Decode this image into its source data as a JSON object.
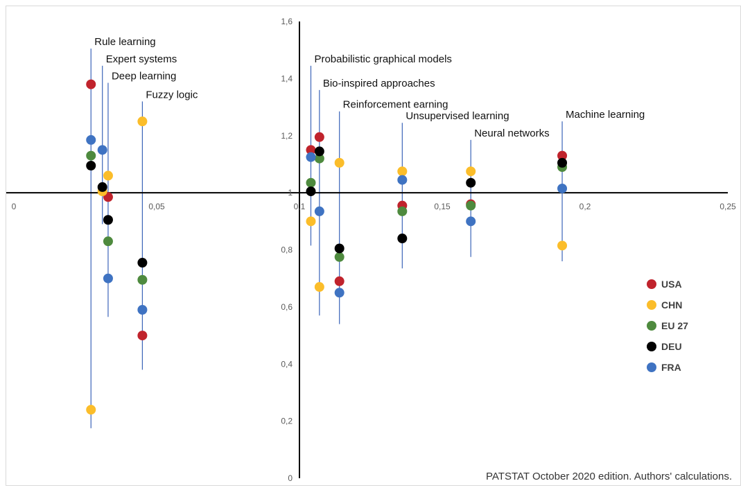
{
  "chart_data": {
    "type": "scatter",
    "xlim": [
      0,
      0.25
    ],
    "ylim": [
      0,
      1.6
    ],
    "x_ticks": [
      "0",
      "0,05",
      "0,1",
      "0,15",
      "0,2",
      "0,25"
    ],
    "y_ticks": [
      "0",
      "0,2",
      "0,4",
      "0,6",
      "0,8",
      "1",
      "1,2",
      "1,4",
      "1,6"
    ],
    "grid": false,
    "axis_crossing": {
      "x": 0.1,
      "y": 1
    },
    "legend_position": "right",
    "colors": {
      "USA": "#c0232c",
      "CHN": "#fbbd2a",
      "EU 27": "#4e8a3e",
      "DEU": "#000000",
      "FRA": "#3f73c2",
      "line": "#3b64b8",
      "axis": "#000000"
    },
    "groups": [
      {
        "label": "Rule learning",
        "x": 0.027,
        "line_range": [
          0.175,
          1.505
        ]
      },
      {
        "label": "Expert systems",
        "x": 0.031,
        "line_range": [
          0.89,
          1.445
        ]
      },
      {
        "label": "Deep learning",
        "x": 0.033,
        "line_range": [
          0.565,
          1.385
        ]
      },
      {
        "label": "Fuzzy logic",
        "x": 0.045,
        "line_range": [
          0.38,
          1.32
        ]
      },
      {
        "label": "Probabilistic graphical models",
        "x": 0.104,
        "line_range": [
          0.815,
          1.445
        ]
      },
      {
        "label": "Bio-inspired approaches",
        "x": 0.107,
        "line_range": [
          0.57,
          1.36
        ]
      },
      {
        "label": "Reinforcement earning",
        "x": 0.114,
        "line_range": [
          0.54,
          1.285
        ]
      },
      {
        "label": "Unsupervised learning",
        "x": 0.136,
        "line_range": [
          0.735,
          1.245
        ]
      },
      {
        "label": "Neural networks",
        "x": 0.16,
        "line_range": [
          0.775,
          1.185
        ]
      },
      {
        "label": "Machine learning",
        "x": 0.192,
        "line_range": [
          0.76,
          1.25
        ]
      }
    ],
    "series": [
      {
        "name": "USA",
        "points": [
          {
            "x": 0.027,
            "y": 1.38
          },
          {
            "x": 0.033,
            "y": 0.985
          },
          {
            "x": 0.045,
            "y": 0.5
          },
          {
            "x": 0.104,
            "y": 1.15
          },
          {
            "x": 0.107,
            "y": 1.195
          },
          {
            "x": 0.114,
            "y": 0.69
          },
          {
            "x": 0.136,
            "y": 0.955
          },
          {
            "x": 0.16,
            "y": 0.96
          },
          {
            "x": 0.192,
            "y": 1.13
          }
        ]
      },
      {
        "name": "CHN",
        "points": [
          {
            "x": 0.027,
            "y": 0.24
          },
          {
            "x": 0.031,
            "y": 1.005
          },
          {
            "x": 0.033,
            "y": 1.06
          },
          {
            "x": 0.045,
            "y": 1.25
          },
          {
            "x": 0.104,
            "y": 0.9
          },
          {
            "x": 0.107,
            "y": 0.67
          },
          {
            "x": 0.114,
            "y": 1.105
          },
          {
            "x": 0.136,
            "y": 1.075
          },
          {
            "x": 0.16,
            "y": 1.075
          },
          {
            "x": 0.192,
            "y": 0.815
          }
        ]
      },
      {
        "name": "EU 27",
        "points": [
          {
            "x": 0.027,
            "y": 1.13
          },
          {
            "x": 0.033,
            "y": 0.83
          },
          {
            "x": 0.045,
            "y": 0.695
          },
          {
            "x": 0.104,
            "y": 1.035
          },
          {
            "x": 0.107,
            "y": 1.12
          },
          {
            "x": 0.114,
            "y": 0.775
          },
          {
            "x": 0.136,
            "y": 0.935
          },
          {
            "x": 0.16,
            "y": 0.955
          },
          {
            "x": 0.192,
            "y": 1.09
          }
        ]
      },
      {
        "name": "DEU",
        "points": [
          {
            "x": 0.027,
            "y": 1.095
          },
          {
            "x": 0.031,
            "y": 1.02
          },
          {
            "x": 0.033,
            "y": 0.905
          },
          {
            "x": 0.045,
            "y": 0.755
          },
          {
            "x": 0.104,
            "y": 1.005
          },
          {
            "x": 0.107,
            "y": 1.145
          },
          {
            "x": 0.114,
            "y": 0.805
          },
          {
            "x": 0.136,
            "y": 0.84
          },
          {
            "x": 0.16,
            "y": 1.035
          },
          {
            "x": 0.192,
            "y": 1.105
          }
        ]
      },
      {
        "name": "FRA",
        "points": [
          {
            "x": 0.027,
            "y": 1.185
          },
          {
            "x": 0.031,
            "y": 1.15
          },
          {
            "x": 0.033,
            "y": 0.7
          },
          {
            "x": 0.045,
            "y": 0.59
          },
          {
            "x": 0.104,
            "y": 1.125
          },
          {
            "x": 0.107,
            "y": 0.935
          },
          {
            "x": 0.114,
            "y": 0.65
          },
          {
            "x": 0.136,
            "y": 1.045
          },
          {
            "x": 0.16,
            "y": 0.9
          },
          {
            "x": 0.192,
            "y": 1.015
          }
        ]
      }
    ],
    "source_note": "PATSTAT October 2020 edition. Authors' calculations."
  }
}
